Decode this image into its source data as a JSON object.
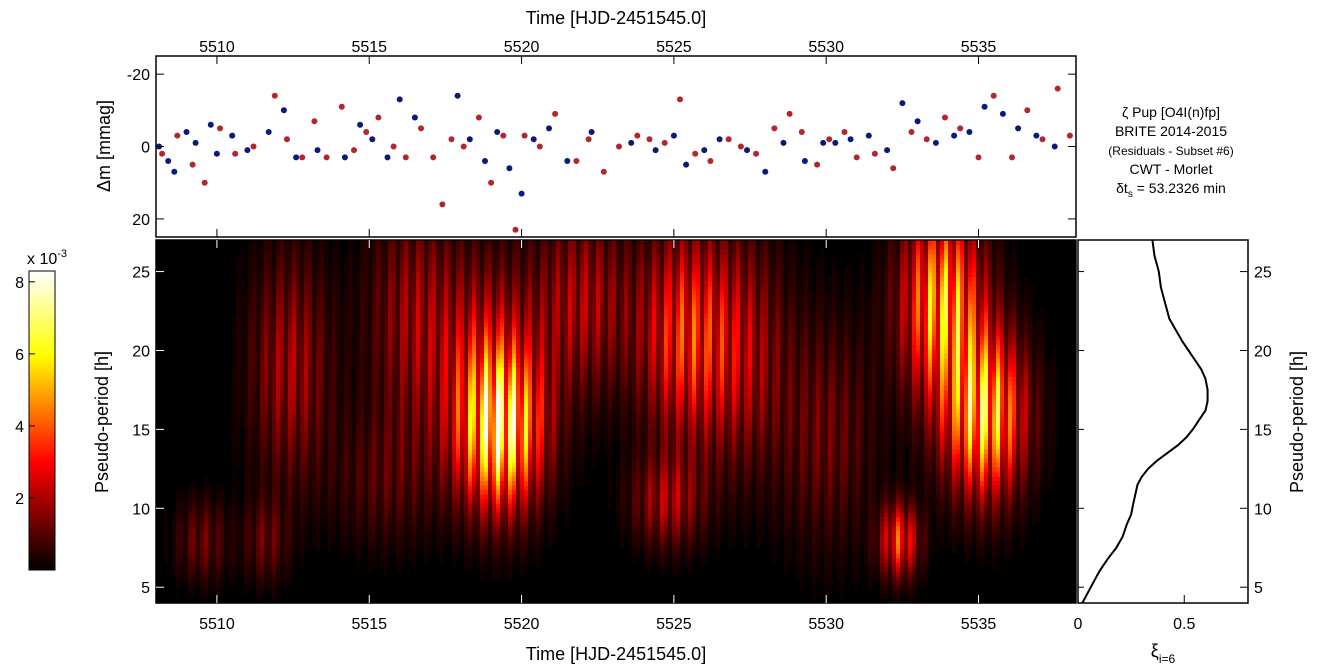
{
  "chart_data": [
    {
      "type": "scatter",
      "title": "",
      "top_xlabel": "Time [HJD-2451545.0]",
      "ylabel": "Δm [mmag]",
      "xlim": [
        5508,
        5538.2
      ],
      "ylim": [
        25,
        -25
      ],
      "y_inverted": true,
      "x_ticks": [
        5510,
        5515,
        5520,
        5525,
        5530,
        5535
      ],
      "y_ticks": [
        -20,
        0,
        20
      ],
      "series": [
        {
          "color": "#0b1a7a",
          "x": [
            5508.1,
            5508.4,
            5508.6,
            5509.0,
            5509.3,
            5509.8,
            5510.0,
            5510.5,
            5511.0,
            5511.7,
            5512.2,
            5512.6,
            5513.3,
            5514.2,
            5514.7,
            5515.1,
            5515.6,
            5516.0,
            5516.5,
            5517.9,
            5518.3,
            5518.8,
            5519.2,
            5519.6,
            5520.0,
            5520.4,
            5520.9,
            5521.5,
            5522.3,
            5523.6,
            5524.4,
            5525.0,
            5525.4,
            5526.0,
            5526.5,
            5527.4,
            5528.0,
            5528.6,
            5529.3,
            5529.9,
            5530.3,
            5530.8,
            5531.4,
            5532.0,
            5532.5,
            5533.0,
            5533.6,
            5534.2,
            5534.7,
            5535.2,
            5535.8,
            5536.3,
            5536.9,
            5537.5
          ],
          "y": [
            0,
            4,
            7,
            -4,
            -1,
            -6,
            2,
            -3,
            1,
            -4,
            -10,
            3,
            1,
            3,
            -6,
            -2,
            3,
            -13,
            -8,
            -14,
            -2,
            4,
            -4,
            6,
            13,
            -2,
            -5,
            4,
            -4,
            -1,
            1,
            -3,
            5,
            1,
            -2,
            1,
            7,
            -1,
            4,
            -1,
            -1,
            -2,
            -3,
            1,
            -12,
            -7,
            -1,
            -3,
            -4,
            -11,
            -9,
            -5,
            -3,
            0
          ]
        },
        {
          "color": "#b3262e",
          "x": [
            5508.2,
            5508.7,
            5509.2,
            5509.6,
            5510.1,
            5510.6,
            5511.2,
            5511.9,
            5512.3,
            5512.8,
            5513.2,
            5513.6,
            5514.1,
            5514.5,
            5514.9,
            5515.3,
            5515.8,
            5516.2,
            5516.7,
            5517.1,
            5517.4,
            5517.7,
            5518.1,
            5518.6,
            5519.0,
            5519.4,
            5519.8,
            5520.1,
            5520.6,
            5521.1,
            5521.8,
            5522.2,
            5522.7,
            5523.2,
            5523.8,
            5524.2,
            5524.7,
            5525.2,
            5525.7,
            5526.2,
            5526.8,
            5527.2,
            5527.7,
            5528.3,
            5528.8,
            5529.2,
            5529.7,
            5530.1,
            5530.6,
            5531.0,
            5531.6,
            5532.2,
            5532.8,
            5533.3,
            5533.9,
            5534.4,
            5535.0,
            5535.5,
            5536.1,
            5536.6,
            5537.1,
            5537.6,
            5538.0
          ],
          "y": [
            2,
            -3,
            5,
            10,
            -5,
            2,
            0,
            -14,
            -2,
            3,
            -7,
            3,
            -11,
            1,
            -4,
            -8,
            0,
            3,
            -5,
            3,
            16,
            -2,
            0,
            -8,
            10,
            -3,
            23,
            -3,
            0,
            -9,
            4,
            -2,
            7,
            0,
            -3,
            -2,
            -1,
            -13,
            2,
            4,
            -2,
            0,
            2,
            -5,
            -9,
            -4,
            5,
            -2,
            -4,
            3,
            2,
            6,
            -4,
            -2,
            -8,
            -5,
            3,
            -14,
            3,
            -10,
            -2,
            -16,
            -3
          ]
        }
      ]
    },
    {
      "type": "heatmap",
      "title": "",
      "xlabel": "Time [HJD-2451545.0]",
      "ylabel": "Pseudo-period [h]",
      "xlim": [
        5508,
        5538.2
      ],
      "ylim": [
        4,
        27
      ],
      "x_ticks": [
        5510,
        5515,
        5520,
        5525,
        5530,
        5535
      ],
      "y_ticks": [
        5,
        10,
        15,
        20,
        25
      ],
      "colormap": "hot",
      "colorbar": {
        "label": "x 10",
        "exponent": "-3",
        "ticks": [
          2,
          4,
          6,
          8
        ],
        "range": [
          0,
          8.3
        ]
      },
      "blobs": [
        {
          "t": 5519.3,
          "p": 15,
          "amp": 8.3,
          "sigma_t": 0.95,
          "sigma_p": 3.4
        },
        {
          "t": 5518.8,
          "p": 20,
          "amp": 2.5,
          "sigma_t": 1.2,
          "sigma_p": 4.5
        },
        {
          "t": 5525.3,
          "p": 21,
          "amp": 4.2,
          "sigma_t": 1.0,
          "sigma_p": 4.5
        },
        {
          "t": 5524.8,
          "p": 10.5,
          "amp": 2.5,
          "sigma_t": 0.8,
          "sigma_p": 2.0
        },
        {
          "t": 5533.8,
          "p": 23,
          "amp": 6.8,
          "sigma_t": 0.9,
          "sigma_p": 4.0
        },
        {
          "t": 5535.2,
          "p": 16,
          "amp": 7.5,
          "sigma_t": 0.9,
          "sigma_p": 3.5
        },
        {
          "t": 5532.4,
          "p": 8,
          "amp": 4.5,
          "sigma_t": 0.45,
          "sigma_p": 1.6
        },
        {
          "t": 5512.4,
          "p": 19,
          "amp": 2.5,
          "sigma_t": 0.9,
          "sigma_p": 5.0
        },
        {
          "t": 5516.4,
          "p": 22,
          "amp": 2.2,
          "sigma_t": 1.0,
          "sigma_p": 5.0
        },
        {
          "t": 5522.0,
          "p": 23,
          "amp": 2.6,
          "sigma_t": 1.1,
          "sigma_p": 4.0
        },
        {
          "t": 5527.2,
          "p": 20,
          "amp": 2.6,
          "sigma_t": 1.0,
          "sigma_p": 5.0
        },
        {
          "t": 5530.0,
          "p": 15,
          "amp": 1.6,
          "sigma_t": 1.1,
          "sigma_p": 5.0
        },
        {
          "t": 5509.5,
          "p": 8,
          "amp": 1.6,
          "sigma_t": 0.6,
          "sigma_p": 1.8
        },
        {
          "t": 5511.6,
          "p": 8,
          "amp": 1.5,
          "sigma_t": 0.5,
          "sigma_p": 1.8
        },
        {
          "t": 5515.5,
          "p": 12,
          "amp": 1.2,
          "sigma_t": 1.2,
          "sigma_p": 3.0
        }
      ]
    },
    {
      "type": "line",
      "title": "",
      "xlabel": "ξ",
      "xlabel_sub": "i=6",
      "ylabel": "Pseudo-period [h]",
      "xlim": [
        0,
        0.8
      ],
      "ylim": [
        4,
        27
      ],
      "x_ticks": [
        0,
        0.5
      ],
      "x_tick_labels": [
        "0",
        "0.5"
      ],
      "y_ticks": [
        5,
        10,
        15,
        20,
        25
      ],
      "x": [
        0.02,
        0.06,
        0.1,
        0.14,
        0.18,
        0.21,
        0.23,
        0.25,
        0.26,
        0.27,
        0.28,
        0.3,
        0.33,
        0.37,
        0.42,
        0.47,
        0.51,
        0.54,
        0.57,
        0.6,
        0.61,
        0.61,
        0.6,
        0.58,
        0.55,
        0.52,
        0.49,
        0.46,
        0.43,
        0.41,
        0.39,
        0.38,
        0.36,
        0.35
      ],
      "y": [
        4.0,
        5.0,
        6.0,
        6.8,
        7.5,
        8.2,
        9.0,
        9.6,
        10.3,
        10.9,
        11.5,
        12.0,
        12.5,
        13.0,
        13.5,
        14.0,
        14.5,
        15.0,
        15.6,
        16.2,
        16.8,
        17.5,
        18.2,
        18.8,
        19.4,
        20.0,
        20.6,
        21.3,
        22.0,
        23.0,
        24.0,
        25.0,
        26.0,
        27.0
      ]
    }
  ],
  "annotation": {
    "line1": "ζ Pup [O4I(n)fp]",
    "line2": "BRITE 2014-2015",
    "line3": "(Residuals - Subset #6)",
    "line4": "CWT - Morlet",
    "line5_pre": "δt",
    "line5_sub": "s",
    "line5_post": " = 53.2326 min"
  }
}
